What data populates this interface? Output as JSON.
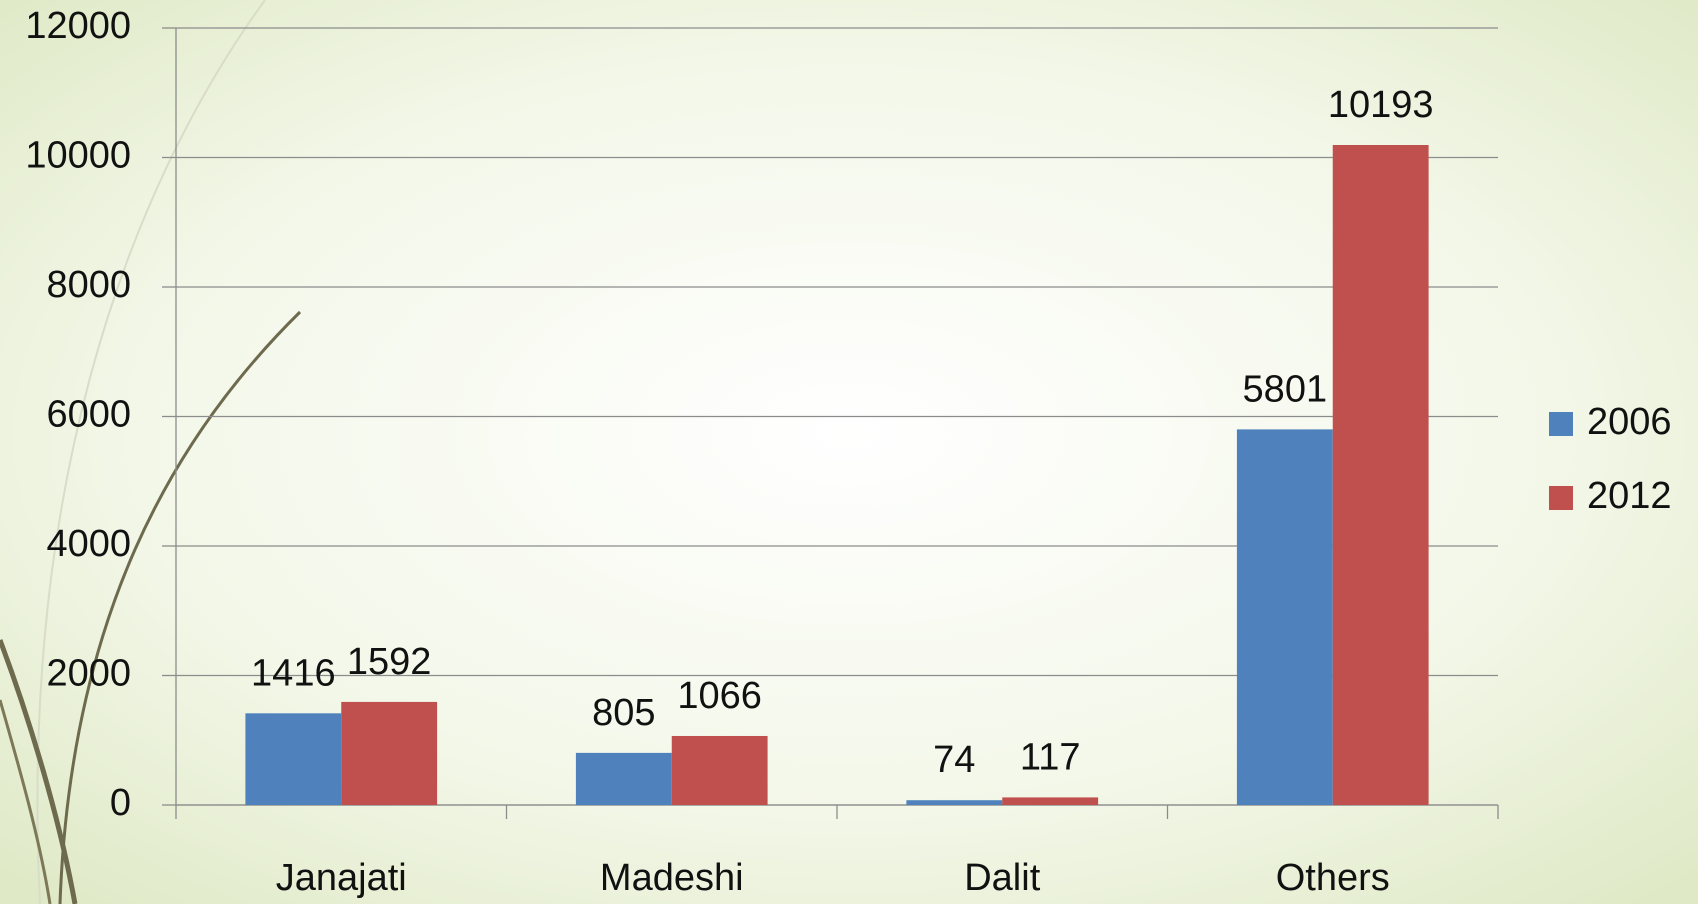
{
  "chart_data": {
    "type": "bar",
    "categories": [
      "Janajati",
      "Madeshi",
      "Dalit",
      "Others"
    ],
    "series": [
      {
        "name": "2006",
        "color": "#4f81bd",
        "values": [
          1416,
          805,
          74,
          5801
        ]
      },
      {
        "name": "2012",
        "color": "#c0504d",
        "values": [
          1592,
          1066,
          117,
          10193
        ]
      }
    ],
    "ylim": [
      0,
      12000
    ],
    "yticks": [
      0,
      2000,
      4000,
      6000,
      8000,
      10000,
      12000
    ],
    "grid": true,
    "legend": "right",
    "data_labels": true
  }
}
